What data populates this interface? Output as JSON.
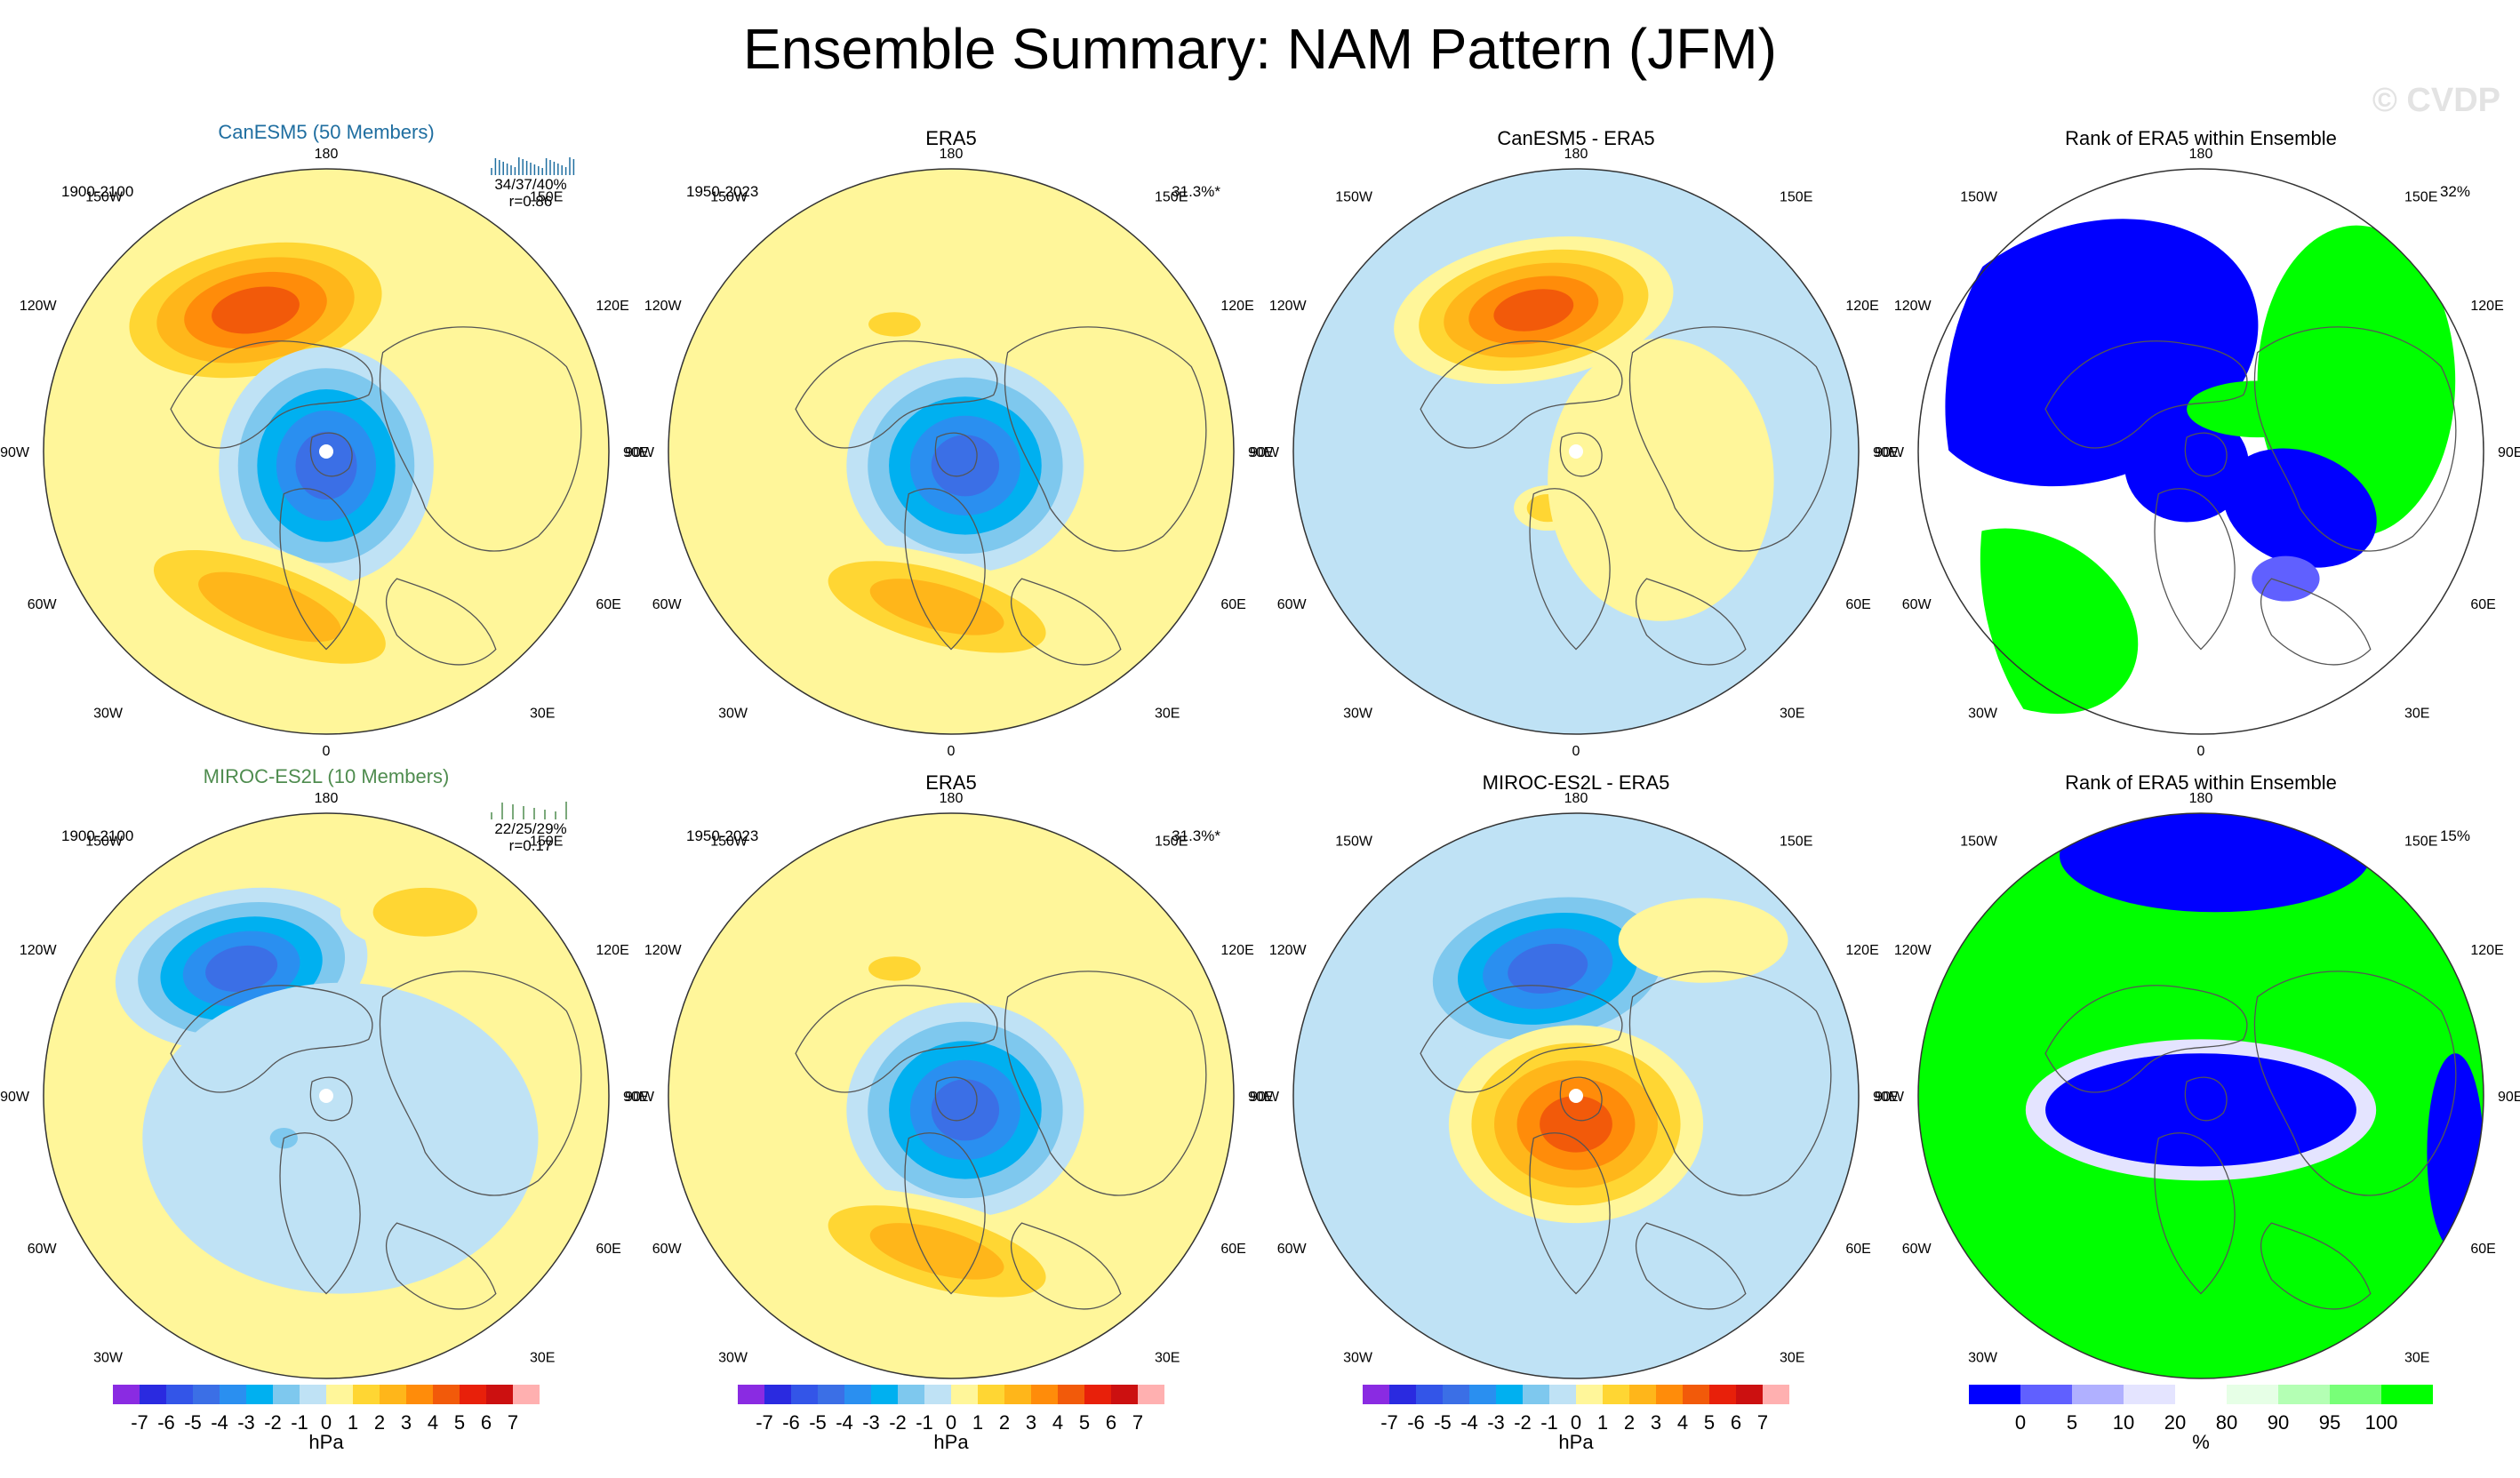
{
  "title": "Ensemble Summary: NAM Pattern (JFM)",
  "watermark": "© CVDP",
  "colors": {
    "diverging": [
      "#8a2be2",
      "#2a2ae0",
      "#3355e8",
      "#3b6fe6",
      "#2a8ff0",
      "#00b0f0",
      "#7ec8ee",
      "#bfe2f5",
      "#fff69a",
      "#ffd633",
      "#ffb61a",
      "#ff8c0a",
      "#f25a0a",
      "#e8200a",
      "#cc1010",
      "#ffb0b0"
    ],
    "rank": [
      "#0000ff",
      "#6060ff",
      "#b0b0ff",
      "#e4e4ff",
      "#ffffff",
      "#e6ffe6",
      "#b4ffb4",
      "#78ff78",
      "#00ff00"
    ],
    "model_title_row1": "#1f6ea0",
    "model_title_row2": "#4f8c4f"
  },
  "map_labels": {
    "lon_top": "180",
    "lon_bottom": "0",
    "lon_150w": "150W",
    "lon_150e": "150E",
    "lon_120w": "120W",
    "lon_120e": "120E",
    "lon_90w": "90W",
    "lon_90e": "90E",
    "lon_60w": "60W",
    "lon_60e": "60E",
    "lon_30w": "30W",
    "lon_30e": "30E"
  },
  "colorbar_div": {
    "ticks": [
      "-7",
      "-6",
      "-5",
      "-4",
      "-3",
      "-2",
      "-1",
      "0",
      "1",
      "2",
      "3",
      "4",
      "5",
      "6",
      "7"
    ],
    "unit": "hPa"
  },
  "colorbar_rank": {
    "ticks": [
      "0",
      "5",
      "10",
      "20",
      "80",
      "90",
      "95",
      "100"
    ],
    "unit": "%"
  },
  "chart_data": [
    {
      "type": "heatmap",
      "panel": "row1-col1",
      "title": "CanESM5 (50 Members)",
      "period": "1900-2100",
      "stats": "34/37/40%",
      "correlation": "r=0.86",
      "features": [
        {
          "name": "Pacific high",
          "peak_value_hPa": 5
        },
        {
          "name": "Arctic low",
          "peak_value_hPa": -5
        },
        {
          "name": "Atlantic high",
          "peak_value_hPa": 3
        }
      ]
    },
    {
      "type": "heatmap",
      "panel": "row1-col2",
      "title": "ERA5",
      "period": "1950-2023",
      "pct_variance": "31.3%*",
      "features": [
        {
          "name": "Arctic low",
          "peak_value_hPa": -5
        },
        {
          "name": "Atlantic high",
          "peak_value_hPa": 3
        },
        {
          "name": "Pacific high",
          "peak_value_hPa": 2
        }
      ]
    },
    {
      "type": "heatmap",
      "panel": "row1-col3",
      "title": "CanESM5 - ERA5",
      "features": [
        {
          "name": "Pacific high",
          "peak_value_hPa": 5
        },
        {
          "name": "Arctic low",
          "peak_value_hPa": -2
        },
        {
          "name": "Atlantic high",
          "peak_value_hPa": 2
        }
      ]
    },
    {
      "type": "heatmap",
      "panel": "row1-col4",
      "title": "Rank of ERA5 within Ensemble",
      "pct": "32%",
      "scale": "rank percent 0-100"
    },
    {
      "type": "heatmap",
      "panel": "row2-col1",
      "title": "MIROC-ES2L (10 Members)",
      "period": "1900-2100",
      "stats": "22/25/29%",
      "correlation": "r=0.17",
      "features": [
        {
          "name": "Pacific low",
          "peak_value_hPa": -5
        },
        {
          "name": "Pacific high",
          "peak_value_hPa": 2
        },
        {
          "name": "Arctic low",
          "peak_value_hPa": -2
        }
      ]
    },
    {
      "type": "heatmap",
      "panel": "row2-col2",
      "title": "ERA5",
      "period": "1950-2023",
      "pct_variance": "31.3%*",
      "features": [
        {
          "name": "Arctic low",
          "peak_value_hPa": -5
        },
        {
          "name": "Atlantic high",
          "peak_value_hPa": 3
        },
        {
          "name": "Pacific high",
          "peak_value_hPa": 2
        }
      ]
    },
    {
      "type": "heatmap",
      "panel": "row2-col3",
      "title": "MIROC-ES2L - ERA5",
      "features": [
        {
          "name": "Pacific low",
          "peak_value_hPa": -5
        },
        {
          "name": "Arctic high",
          "peak_value_hPa": 5
        },
        {
          "name": "Atlantic low",
          "peak_value_hPa": -2
        }
      ]
    },
    {
      "type": "heatmap",
      "panel": "row2-col4",
      "title": "Rank of ERA5 within Ensemble",
      "pct": "15%",
      "scale": "rank percent 0-100"
    }
  ]
}
